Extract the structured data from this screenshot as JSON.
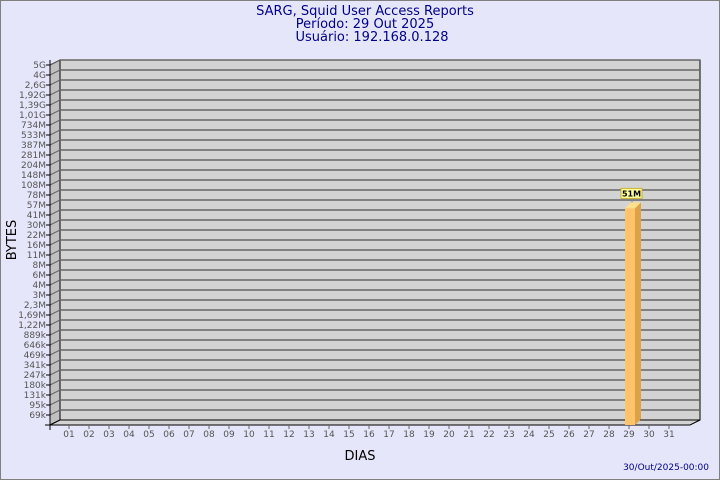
{
  "header": {
    "title": "SARG, Squid User Access Reports",
    "period": "Período: 29 Out 2025",
    "user": "Usuário: 192.168.0.128"
  },
  "footer": {
    "timestamp": "30/Out/2025-00:00"
  },
  "chart_data": {
    "type": "bar",
    "xlabel": "DIAS",
    "ylabel": "BYTES",
    "y_scale": "non-linear (evenly spaced tick labels)",
    "y_ticks": [
      "5G",
      "4G",
      "2,6G",
      "1,92G",
      "1,39G",
      "1,01G",
      "734M",
      "533M",
      "387M",
      "281M",
      "204M",
      "148M",
      "108M",
      "78M",
      "57M",
      "41M",
      "30M",
      "22M",
      "16M",
      "11M",
      "8M",
      "6M",
      "4M",
      "3M",
      "2,3M",
      "1,69M",
      "1,22M",
      "889k",
      "646k",
      "469k",
      "341k",
      "247k",
      "180k",
      "131k",
      "95k",
      "69k"
    ],
    "categories": [
      "01",
      "02",
      "03",
      "04",
      "05",
      "06",
      "07",
      "08",
      "09",
      "10",
      "11",
      "12",
      "13",
      "14",
      "15",
      "16",
      "17",
      "18",
      "19",
      "20",
      "21",
      "22",
      "23",
      "24",
      "25",
      "26",
      "27",
      "28",
      "29",
      "30",
      "31"
    ],
    "bars": [
      {
        "category": "29",
        "value": "51M",
        "label": "51M"
      }
    ],
    "grid": true,
    "colors": {
      "wall": "#d3d3d3",
      "side_wall": "#c0c0c0",
      "bar_front": "#ffc46a",
      "bar_side": "#dca24a",
      "bar_top": "#ffe08a",
      "label_bg": "#ffff99",
      "title": "#00008b"
    }
  }
}
